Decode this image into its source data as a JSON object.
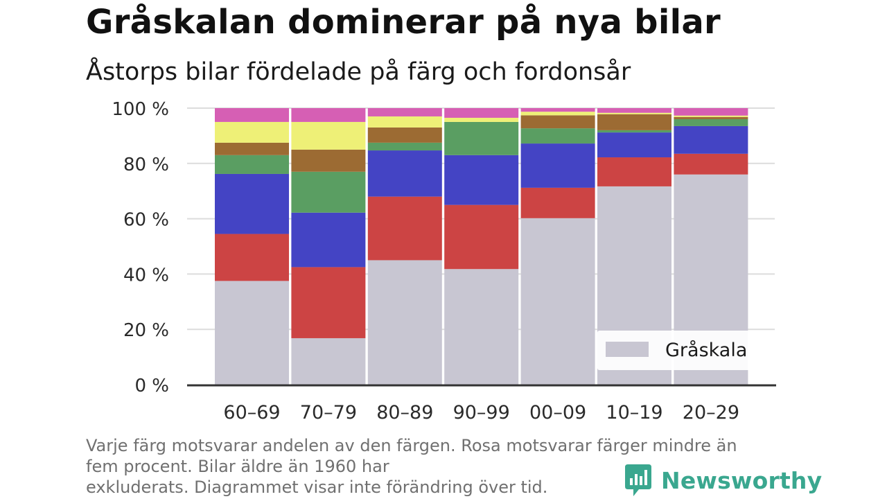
{
  "title": "Gråskalan dominerar på nya bilar",
  "subtitle": "Åstorps bilar fördelade på färg och fordonsår",
  "footnote": {
    "line1": "Varje färg motsvarar andelen av den färgen. Rosa motsvarar färger mindre än",
    "line2": "fem procent. Bilar äldre än 1960 har",
    "line3": "exkluderats. Diagrammet visar inte förändring över tid."
  },
  "brand": {
    "name": "Newsworthy",
    "color": "#3aa78f"
  },
  "chart_data": {
    "type": "bar",
    "stacked": true,
    "categories": [
      "60–69",
      "70–79",
      "80–89",
      "90–99",
      "00–09",
      "10–19",
      "20–29"
    ],
    "ylim": [
      0,
      100
    ],
    "yticks": [
      0,
      20,
      40,
      60,
      80,
      100
    ],
    "ytick_labels": [
      "0 %",
      "20 %",
      "40 %",
      "60 %",
      "80 %",
      "100 %"
    ],
    "grid": true,
    "legend": {
      "position": "bottom-right",
      "entries": [
        "Gråskala"
      ]
    },
    "series": [
      {
        "name": "Gråskala",
        "color": "#c8c6d2",
        "values": [
          37.5,
          16.8,
          45.0,
          41.8,
          60.2,
          71.7,
          76.0
        ]
      },
      {
        "color": "#cc4444",
        "values": [
          17.0,
          25.7,
          23.0,
          23.2,
          11.0,
          10.5,
          7.5
        ]
      },
      {
        "color": "#4444c4",
        "values": [
          21.7,
          19.7,
          16.7,
          18.0,
          16.0,
          9.0,
          10.0
        ]
      },
      {
        "color": "#5a9e62",
        "values": [
          6.8,
          14.8,
          2.8,
          12.0,
          5.5,
          0.8,
          2.5
        ]
      },
      {
        "color": "#9c6b33",
        "values": [
          4.5,
          8.0,
          5.5,
          0.0,
          4.7,
          5.8,
          0.8
        ]
      },
      {
        "color": "#eef077",
        "values": [
          7.5,
          10.0,
          4.0,
          1.5,
          1.3,
          0.5,
          0.5
        ]
      },
      {
        "color": "#d65fb4",
        "values": [
          5.0,
          5.0,
          3.0,
          3.5,
          1.3,
          1.7,
          2.7
        ]
      }
    ]
  }
}
